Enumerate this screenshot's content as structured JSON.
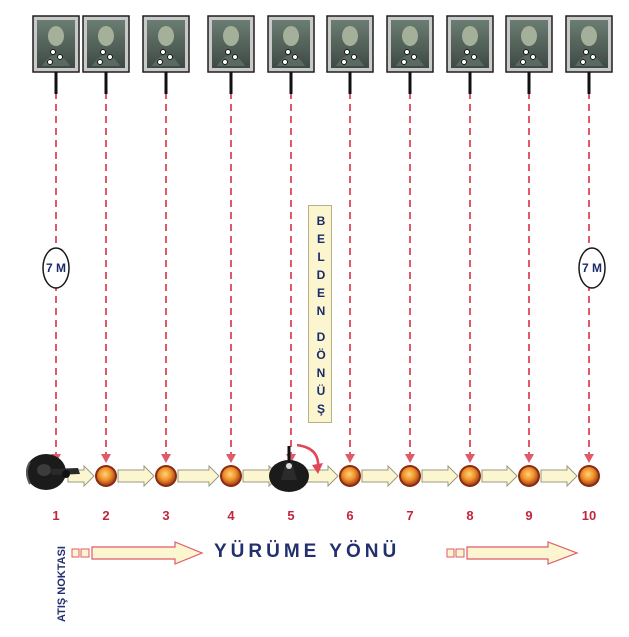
{
  "stations": [
    "1",
    "2",
    "3",
    "4",
    "5",
    "6",
    "7",
    "8",
    "9",
    "10"
  ],
  "distance_label": "7 M",
  "turn_text": {
    "word1": [
      "B",
      "E",
      "L",
      "D",
      "E",
      "N"
    ],
    "word2": [
      "D",
      "Ö",
      "N",
      "Ü",
      "Ş"
    ]
  },
  "direction_label": "YÜRÜME YÖNÜ",
  "firing_point_label": "ATIŞ NOKTASI",
  "colors": {
    "dash_line": "#e05a6a",
    "arrow_body": "#fbf6d0",
    "marker_fill": "#f0922a",
    "marker_ring": "#8a2a10",
    "number": "#c2263c",
    "label": "#23306e"
  },
  "icons": [
    "target-photo-icon",
    "shooter-icon",
    "turn-arrow-icon",
    "direction-arrow-icon",
    "station-marker-icon"
  ]
}
